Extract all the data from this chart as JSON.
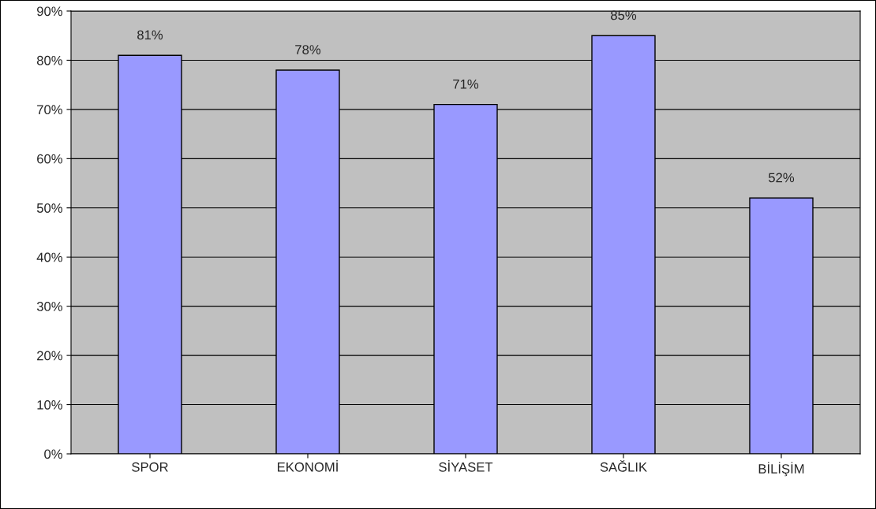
{
  "chart_data": {
    "type": "bar",
    "categories": [
      "SPOR",
      "EKONOMİ",
      "SİYASET",
      "SAĞLIK",
      "BİLİŞİM"
    ],
    "values": [
      81,
      78,
      71,
      85,
      52
    ],
    "value_labels": [
      "81%",
      "78%",
      "71%",
      "85%",
      "52%"
    ],
    "color": "#9999ff",
    "ylim": [
      0,
      90
    ],
    "yticks": [
      {
        "value": 0,
        "label": "0%"
      },
      {
        "value": 10,
        "label": "10%"
      },
      {
        "value": 20,
        "label": "20%"
      },
      {
        "value": 30,
        "label": "30%"
      },
      {
        "value": 40,
        "label": "40%"
      },
      {
        "value": 50,
        "label": "50%"
      },
      {
        "value": 60,
        "label": "60%"
      },
      {
        "value": 70,
        "label": "70%"
      },
      {
        "value": 80,
        "label": "80%"
      },
      {
        "value": 90,
        "label": "90%"
      }
    ],
    "grid": "y",
    "legend": false
  }
}
